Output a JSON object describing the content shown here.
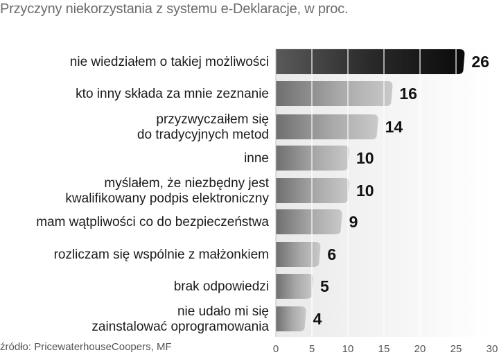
{
  "chart_data": {
    "type": "bar",
    "orientation": "horizontal",
    "title": "Przyczyny niekorzystania z systemu e-Deklaracje, w proc.",
    "source": "źródło: PricewaterhouseCoopers, MF",
    "categories": [
      [
        "nie wiedziałem o takiej możliwości"
      ],
      [
        "kto inny składa za mnie zeznanie"
      ],
      [
        "przyzwyczaiłem się",
        "do tradycyjnych metod"
      ],
      [
        "inne"
      ],
      [
        "myślałem, że niezbędny jest",
        "kwalifikowany podpis elektroniczny"
      ],
      [
        "mam wątpliwości co do bezpieczeństwa"
      ],
      [
        "rozliczam się wspólnie z małżonkiem"
      ],
      [
        "brak odpowiedzi"
      ],
      [
        "nie udało mi się",
        "zainstalować oprogramowania"
      ]
    ],
    "values": [
      26,
      16,
      14,
      10,
      10,
      9,
      6,
      5,
      4
    ],
    "xlim": [
      0,
      30
    ],
    "xticks": [
      0,
      5,
      10,
      15,
      20,
      25,
      30
    ],
    "grid": true,
    "highlight_color": "#1a1a1a",
    "bar_color": "#a8a8a8"
  }
}
